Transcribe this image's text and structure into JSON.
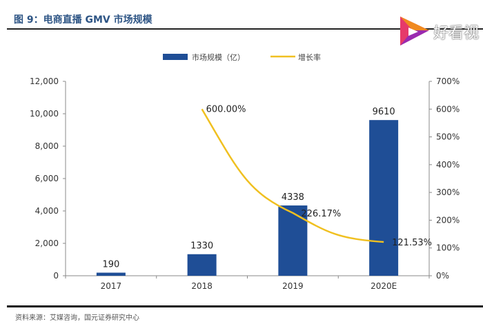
{
  "title": "图 9：电商直播 GMV 市场规模",
  "source": "资料来源：艾媒咨询，国元证券研究中心",
  "watermark": "好看视",
  "chart_data": {
    "type": "bar+line",
    "categories": [
      "2017",
      "2018",
      "2019",
      "2020E"
    ],
    "series": [
      {
        "name": "市场规模（亿）",
        "type": "bar",
        "axis": "left",
        "color": "#1f4e96",
        "values": [
          190,
          1330,
          4338,
          9610
        ],
        "labels": [
          "190",
          "1330",
          "4338",
          "9610"
        ]
      },
      {
        "name": "增长率",
        "type": "line",
        "axis": "right",
        "color": "#f0c020",
        "values": [
          null,
          600.0,
          226.17,
          121.53
        ],
        "labels": [
          "",
          "600.00%",
          "226.17%",
          "121.53%"
        ]
      }
    ],
    "left_axis": {
      "min": 0,
      "max": 12000,
      "ticks": [
        "0",
        "2,000",
        "4,000",
        "6,000",
        "8,000",
        "10,000",
        "12,000"
      ]
    },
    "right_axis": {
      "min": 0,
      "max": 700,
      "ticks": [
        "0%",
        "100%",
        "200%",
        "300%",
        "400%",
        "500%",
        "600%",
        "700%"
      ]
    },
    "legend": "top-center",
    "grid": false
  }
}
